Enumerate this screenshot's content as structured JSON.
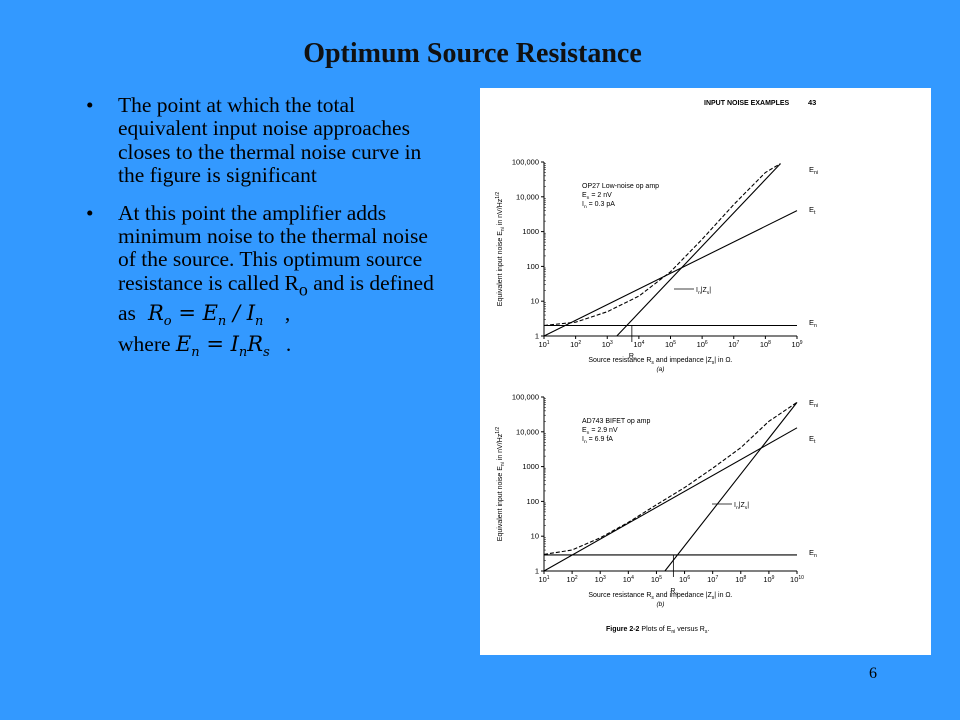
{
  "slide": {
    "title": "Optimum Source Resistance",
    "page_number": "6",
    "background_color": "#3399ff"
  },
  "bullets": {
    "b1": "The point at which the total equivalent input noise approaches closes to the thermal noise curve in the figure is significant",
    "b2_text": "At this point the amplifier adds minimum noise to the thermal noise of the source. This optimum source resistance is called R",
    "b2_sub": "o",
    "b2_tail": " and is defined as",
    "eq1_a": "R",
    "eq1_a_sub": "o",
    "eq1_b": "= E",
    "eq1_b_sub": "n",
    "eq1_c": "/ I",
    "eq1_c_sub": "n",
    "after_eq1": ",",
    "where": "where",
    "eq2_a": "E",
    "eq2_a_sub": "n",
    "eq2_b": "= I",
    "eq2_b_sub": "n",
    "eq2_c": "R",
    "eq2_c_sub": "s",
    "after_eq2": "."
  },
  "figure": {
    "header_left": "INPUT NOISE EXAMPLES",
    "header_page": "43",
    "caption_bold": "Figure 2-2",
    "caption_rest": "Plots of E",
    "caption_sub": "ni",
    "caption_end": " versus R",
    "caption_end_sub": "s",
    "caption_period": ".",
    "ylabel": "Equivalent input noise E",
    "ylabel_sub": "ni",
    "ylabel_tail": " in nV/Hz",
    "ylabel_sup": "1/2",
    "xlabel": "Source resistance R",
    "xlabel_sub": "s",
    "xlabel_mid": " and impedance |Z",
    "xlabel_sub2": "s",
    "xlabel_tail": "| in Ω.",
    "curve_labels": {
      "eni": "E",
      "eni_sub": "ni",
      "et": "E",
      "et_sub": "t",
      "en": "E",
      "en_sub": "n",
      "izs": "I",
      "izs_sub": "n",
      "izs_tail": "|Z",
      "izs_sub2": "s",
      "izs_end": "|",
      "ro": "R",
      "ro_sub": "o"
    }
  },
  "chart_data": [
    {
      "type": "line",
      "label": "(a)",
      "legend_title": "OP27 Low-noise op amp",
      "legend_line1": "E",
      "legend_line1_sub": "n",
      "legend_line1_val": " = 2 nV",
      "legend_line2": "I",
      "legend_line2_sub": "n",
      "legend_line2_val": " = 0.3 pA",
      "x_scale": "log",
      "xlim": [
        10,
        1000000000
      ],
      "y_scale": "log",
      "ylim": [
        1,
        100000
      ],
      "x_ticks": [
        "10",
        "2",
        "3",
        "4",
        "5",
        "6",
        "7",
        "8",
        "9"
      ],
      "y_ticks": [
        "1",
        "10",
        "100",
        "1000",
        "10,000",
        "100,000"
      ],
      "series": [
        {
          "name": "Eni",
          "style": "dashed",
          "x": [
            10,
            100,
            1000,
            10000,
            100000,
            1000000,
            10000000,
            100000000,
            300000000
          ],
          "y": [
            2,
            2.5,
            5,
            14,
            70,
            600,
            6000,
            50000,
            90000
          ]
        },
        {
          "name": "Et",
          "style": "solid",
          "x": [
            10,
            1000000000
          ],
          "y": [
            0.4,
            4000
          ]
        },
        {
          "name": "In|Zs|",
          "style": "solid",
          "x": [
            2000,
            300000000
          ],
          "y": [
            1,
            90000
          ]
        },
        {
          "name": "En",
          "style": "solid",
          "x": [
            10,
            1000000000
          ],
          "y": [
            2,
            2
          ]
        }
      ],
      "annotations": [
        {
          "text": "Ro",
          "x": 6000
        }
      ]
    },
    {
      "type": "line",
      "label": "(b)",
      "legend_title": "AD743 BIFET op amp",
      "legend_line1": "E",
      "legend_line1_sub": "n",
      "legend_line1_val": " = 2.9 nV",
      "legend_line2": "I",
      "legend_line2_sub": "n",
      "legend_line2_val": " = 6.9 fA",
      "x_scale": "log",
      "xlim": [
        10,
        10000000000
      ],
      "y_scale": "log",
      "ylim": [
        1,
        100000
      ],
      "x_ticks": [
        "10",
        "2",
        "3",
        "4",
        "5",
        "6",
        "7",
        "8",
        "9",
        "10"
      ],
      "y_ticks": [
        "1",
        "10",
        "100",
        "1000",
        "10,000",
        "100,000"
      ],
      "series": [
        {
          "name": "Eni",
          "style": "dashed",
          "x": [
            10,
            100,
            1000,
            10000,
            100000,
            1000000,
            10000000,
            100000000,
            1000000000,
            10000000000
          ],
          "y": [
            3,
            4,
            9,
            25,
            80,
            250,
            900,
            3500,
            20000,
            70000
          ]
        },
        {
          "name": "Et",
          "style": "solid",
          "x": [
            10,
            10000000000
          ],
          "y": [
            0.4,
            13000
          ]
        },
        {
          "name": "In|Zs|",
          "style": "solid",
          "x": [
            200000,
            10000000000
          ],
          "y": [
            1,
            70000
          ]
        },
        {
          "name": "En",
          "style": "solid",
          "x": [
            10,
            10000000000
          ],
          "y": [
            2.9,
            2.9
          ]
        }
      ],
      "annotations": [
        {
          "text": "Ro",
          "x": 400000
        }
      ]
    }
  ]
}
